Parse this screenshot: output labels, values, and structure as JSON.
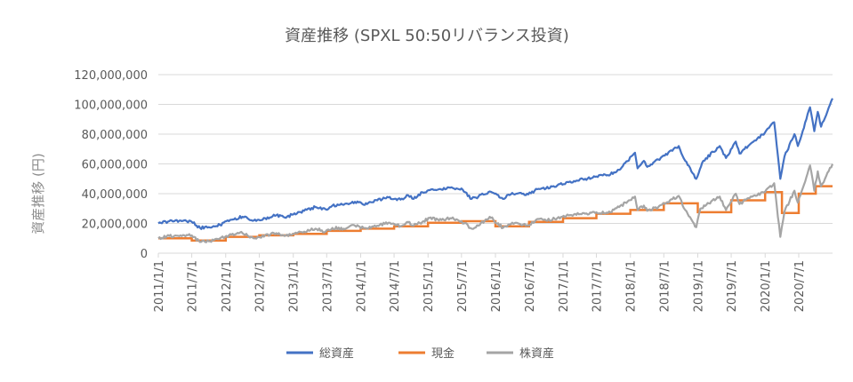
{
  "chart_data": {
    "type": "line",
    "title": "資産推移 (SPXL 50:50リバランス投資)",
    "ylabel": "資産推移 (円)",
    "xlabel": "",
    "ylim": [
      0,
      120000000
    ],
    "yticks": [
      0,
      20000000,
      40000000,
      60000000,
      80000000,
      100000000,
      120000000
    ],
    "ytick_labels": [
      "0",
      "20,000,000",
      "40,000,000",
      "60,000,000",
      "80,000,000",
      "100,000,000",
      "120,000,000"
    ],
    "xlim": [
      "2011-01-01",
      "2020-12-31"
    ],
    "x_tick_labels": [
      "2011/1/1",
      "2011/7/1",
      "2012/1/1",
      "2012/7/1",
      "2013/1/1",
      "2013/7/1",
      "2014/1/1",
      "2014/7/1",
      "2015/1/1",
      "2015/7/1",
      "2016/1/1",
      "2016/7/1",
      "2017/1/1",
      "2017/7/1",
      "2018/1/1",
      "2018/7/1",
      "2019/1/1",
      "2019/7/1",
      "2020/1/1",
      "2020/7/1"
    ],
    "grid": "horizontal",
    "legend": "bottom",
    "series": [
      {
        "name": "総資産",
        "color": "#4472C4",
        "points": [
          [
            "2011-01-01",
            20000000
          ],
          [
            "2011-03-01",
            21500000
          ],
          [
            "2011-05-01",
            22000000
          ],
          [
            "2011-07-01",
            21000000
          ],
          [
            "2011-08-15",
            17000000
          ],
          [
            "2011-10-01",
            17500000
          ],
          [
            "2011-12-01",
            19000000
          ],
          [
            "2012-02-01",
            22500000
          ],
          [
            "2012-04-01",
            24500000
          ],
          [
            "2012-06-01",
            22000000
          ],
          [
            "2012-08-01",
            23500000
          ],
          [
            "2012-10-01",
            25500000
          ],
          [
            "2012-11-15",
            24000000
          ],
          [
            "2013-01-01",
            26000000
          ],
          [
            "2013-03-01",
            28500000
          ],
          [
            "2013-05-01",
            31000000
          ],
          [
            "2013-06-25",
            29500000
          ],
          [
            "2013-08-01",
            32000000
          ],
          [
            "2013-10-01",
            32500000
          ],
          [
            "2013-12-01",
            34500000
          ],
          [
            "2014-02-05",
            33000000
          ],
          [
            "2014-04-01",
            35500000
          ],
          [
            "2014-06-01",
            37500000
          ],
          [
            "2014-08-05",
            36000000
          ],
          [
            "2014-09-15",
            39000000
          ],
          [
            "2014-10-15",
            36500000
          ],
          [
            "2014-12-01",
            41000000
          ],
          [
            "2015-03-01",
            43000000
          ],
          [
            "2015-05-01",
            44000000
          ],
          [
            "2015-07-01",
            43500000
          ],
          [
            "2015-08-25",
            36500000
          ],
          [
            "2015-10-01",
            38000000
          ],
          [
            "2015-12-01",
            41500000
          ],
          [
            "2016-02-11",
            36500000
          ],
          [
            "2016-04-01",
            40500000
          ],
          [
            "2016-06-27",
            39500000
          ],
          [
            "2016-08-15",
            43000000
          ],
          [
            "2016-10-01",
            43500000
          ],
          [
            "2016-12-01",
            45500000
          ],
          [
            "2017-03-01",
            48500000
          ],
          [
            "2017-05-01",
            50000000
          ],
          [
            "2017-07-01",
            51500000
          ],
          [
            "2017-09-01",
            52500000
          ],
          [
            "2017-11-01",
            56000000
          ],
          [
            "2018-01-26",
            67500000
          ],
          [
            "2018-02-09",
            57000000
          ],
          [
            "2018-03-15",
            62000000
          ],
          [
            "2018-04-02",
            58000000
          ],
          [
            "2018-06-01",
            63000000
          ],
          [
            "2018-09-20",
            72000000
          ],
          [
            "2018-10-25",
            62000000
          ],
          [
            "2018-12-24",
            50000000
          ],
          [
            "2019-01-31",
            62000000
          ],
          [
            "2019-04-30",
            72000000
          ],
          [
            "2019-06-03",
            64000000
          ],
          [
            "2019-07-26",
            75000000
          ],
          [
            "2019-08-15",
            67000000
          ],
          [
            "2019-10-01",
            72000000
          ],
          [
            "2019-12-31",
            81000000
          ],
          [
            "2020-02-19",
            88000000
          ],
          [
            "2020-03-23",
            50000000
          ],
          [
            "2020-04-15",
            65000000
          ],
          [
            "2020-06-08",
            80000000
          ],
          [
            "2020-06-26",
            72000000
          ],
          [
            "2020-08-31",
            98000000
          ],
          [
            "2020-09-23",
            82000000
          ],
          [
            "2020-10-12",
            95000000
          ],
          [
            "2020-10-30",
            85000000
          ],
          [
            "2020-12-31",
            104000000
          ]
        ]
      },
      {
        "name": "現金",
        "color": "#ED7D31",
        "steps": [
          [
            "2011-01-01",
            10000000
          ],
          [
            "2011-07-01",
            8500000
          ],
          [
            "2012-01-01",
            11000000
          ],
          [
            "2012-07-01",
            12000000
          ],
          [
            "2013-01-01",
            13000000
          ],
          [
            "2013-07-01",
            15000000
          ],
          [
            "2014-01-01",
            16500000
          ],
          [
            "2014-07-01",
            18000000
          ],
          [
            "2015-01-01",
            20500000
          ],
          [
            "2015-07-01",
            21500000
          ],
          [
            "2016-01-01",
            18000000
          ],
          [
            "2016-07-01",
            21000000
          ],
          [
            "2017-01-01",
            23500000
          ],
          [
            "2017-07-01",
            26500000
          ],
          [
            "2018-01-01",
            29000000
          ],
          [
            "2018-07-01",
            33500000
          ],
          [
            "2019-01-01",
            27500000
          ],
          [
            "2019-07-01",
            35500000
          ],
          [
            "2020-01-01",
            41000000
          ],
          [
            "2020-04-01",
            27000000
          ],
          [
            "2020-07-01",
            40000000
          ],
          [
            "2020-10-01",
            45000000
          ],
          [
            "2020-12-31",
            45000000
          ]
        ]
      },
      {
        "name": "株資産",
        "color": "#A5A5A5",
        "points": [
          [
            "2011-01-01",
            10000000
          ],
          [
            "2011-03-01",
            11500000
          ],
          [
            "2011-05-01",
            12000000
          ],
          [
            "2011-07-01",
            12000000
          ],
          [
            "2011-08-15",
            7500000
          ],
          [
            "2011-10-01",
            8000000
          ],
          [
            "2011-12-01",
            10000000
          ],
          [
            "2012-02-01",
            12500000
          ],
          [
            "2012-04-01",
            13500000
          ],
          [
            "2012-06-01",
            10000000
          ],
          [
            "2012-08-01",
            12000000
          ],
          [
            "2012-10-01",
            13500000
          ],
          [
            "2012-11-15",
            11500000
          ],
          [
            "2013-01-01",
            13000000
          ],
          [
            "2013-03-01",
            14500000
          ],
          [
            "2013-05-01",
            16500000
          ],
          [
            "2013-06-25",
            14500000
          ],
          [
            "2013-08-01",
            17000000
          ],
          [
            "2013-10-01",
            16500000
          ],
          [
            "2013-12-01",
            18500000
          ],
          [
            "2014-02-05",
            16500000
          ],
          [
            "2014-04-01",
            18500000
          ],
          [
            "2014-06-01",
            20500000
          ],
          [
            "2014-08-05",
            18000000
          ],
          [
            "2014-09-15",
            21000000
          ],
          [
            "2014-10-15",
            18500000
          ],
          [
            "2014-12-01",
            21000000
          ],
          [
            "2015-01-15",
            24000000
          ],
          [
            "2015-03-01",
            22000000
          ],
          [
            "2015-05-01",
            23500000
          ],
          [
            "2015-07-01",
            21500000
          ],
          [
            "2015-08-25",
            16500000
          ],
          [
            "2015-10-01",
            18500000
          ],
          [
            "2015-12-01",
            24500000
          ],
          [
            "2016-02-11",
            17000000
          ],
          [
            "2016-04-01",
            20500000
          ],
          [
            "2016-06-27",
            18500000
          ],
          [
            "2016-08-15",
            23000000
          ],
          [
            "2016-10-01",
            22000000
          ],
          [
            "2016-12-01",
            23500000
          ],
          [
            "2017-03-01",
            26000000
          ],
          [
            "2017-05-01",
            26500000
          ],
          [
            "2017-07-01",
            27500000
          ],
          [
            "2017-09-01",
            27000000
          ],
          [
            "2017-11-01",
            31000000
          ],
          [
            "2018-01-26",
            38000000
          ],
          [
            "2018-02-09",
            29000000
          ],
          [
            "2018-03-15",
            32000000
          ],
          [
            "2018-04-02",
            28500000
          ],
          [
            "2018-06-01",
            31000000
          ],
          [
            "2018-09-20",
            38500000
          ],
          [
            "2018-10-25",
            29000000
          ],
          [
            "2018-12-24",
            17500000
          ],
          [
            "2019-01-15",
            30000000
          ],
          [
            "2019-04-30",
            38000000
          ],
          [
            "2019-06-03",
            29000000
          ],
          [
            "2019-07-26",
            40000000
          ],
          [
            "2019-08-15",
            33000000
          ],
          [
            "2019-10-01",
            37000000
          ],
          [
            "2019-12-31",
            41000000
          ],
          [
            "2020-02-19",
            47000000
          ],
          [
            "2020-03-23",
            11000000
          ],
          [
            "2020-04-15",
            28000000
          ],
          [
            "2020-06-08",
            42000000
          ],
          [
            "2020-06-26",
            34000000
          ],
          [
            "2020-08-31",
            59000000
          ],
          [
            "2020-09-23",
            42000000
          ],
          [
            "2020-10-12",
            55000000
          ],
          [
            "2020-10-30",
            45000000
          ],
          [
            "2020-12-31",
            60000000
          ]
        ]
      }
    ]
  }
}
